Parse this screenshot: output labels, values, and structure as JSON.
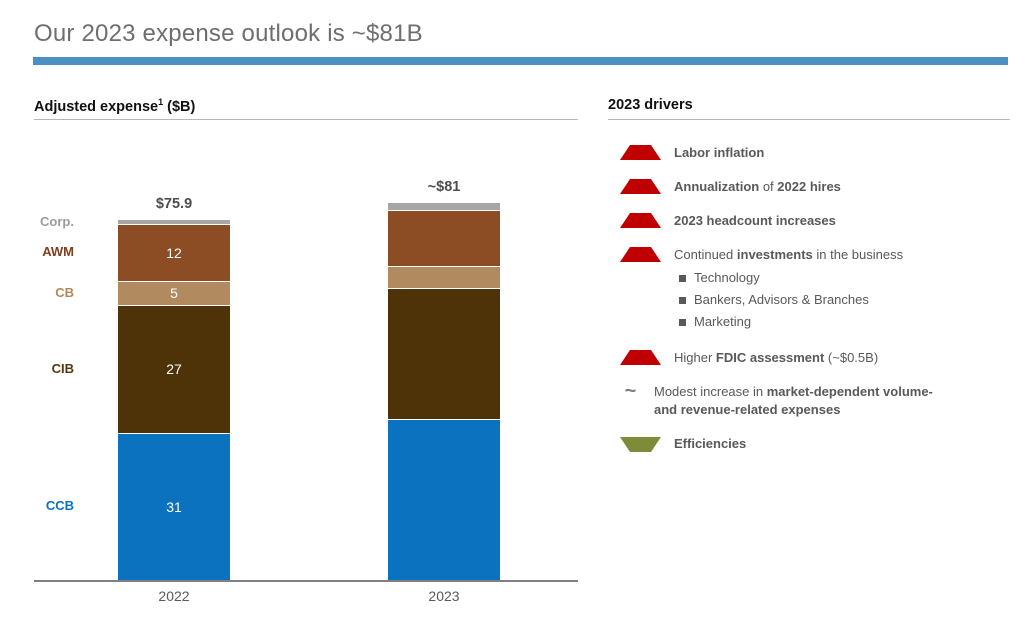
{
  "slide": {
    "title": "Our 2023 expense outlook is ~$81B",
    "accent_color": "#4b8fc3"
  },
  "left_panel": {
    "header": {
      "text": "Adjusted expense",
      "superscript": "1",
      "suffix": " ($B)"
    }
  },
  "right_panel": {
    "header": "2023 drivers",
    "icon_colors": {
      "up": "#c00000",
      "down": "#7e8c3a",
      "tilde": "#7f7f7f"
    },
    "drivers": [
      {
        "icon": "up-triangle",
        "runs": [
          {
            "t": "Labor inflation",
            "b": true
          }
        ]
      },
      {
        "icon": "up-triangle",
        "runs": [
          {
            "t": "Annualization",
            "b": true
          },
          {
            "t": " of ",
            "b": false
          },
          {
            "t": "2022 hires",
            "b": true
          }
        ]
      },
      {
        "icon": "up-triangle",
        "runs": [
          {
            "t": "2023 headcount increases",
            "b": true
          }
        ]
      },
      {
        "icon": "up-triangle",
        "runs": [
          {
            "t": "Continued ",
            "b": false
          },
          {
            "t": "investments",
            "b": true
          },
          {
            "t": " in the business",
            "b": false
          }
        ],
        "sub_items": [
          "Technology",
          "Bankers, Advisors & Branches",
          "Marketing"
        ]
      },
      {
        "icon": "up-triangle",
        "runs": [
          {
            "t": "Higher ",
            "b": false
          },
          {
            "t": "FDIC assessment",
            "b": true
          },
          {
            "t": " (~$0.5B)",
            "b": false
          }
        ]
      },
      {
        "icon": "tilde",
        "runs": [
          {
            "t": "Modest increase in ",
            "b": false
          },
          {
            "t": "market-dependent volume-",
            "b": true,
            "br": true
          },
          {
            "t": "and revenue-related expenses",
            "b": true
          }
        ]
      },
      {
        "icon": "down-triangle",
        "runs": [
          {
            "t": "Efficiencies",
            "b": true
          }
        ]
      }
    ]
  },
  "chart_data": {
    "type": "bar",
    "stacked": true,
    "title": "Adjusted expense1 ($B)",
    "categories": [
      "2022",
      "2023"
    ],
    "totals": [
      75.9,
      81
    ],
    "totals_labels": [
      "$75.9",
      "~$81"
    ],
    "note": "2023 segment values are estimates read from bar heights; only the total ~$81 is labeled",
    "segments_bottom_to_top": [
      {
        "name": "CCB",
        "color": "#0b72c0",
        "label_color": "#0b72c0",
        "values": [
          31,
          34
        ],
        "labels": [
          "31",
          ""
        ]
      },
      {
        "name": "CIB",
        "color": "#4d3307",
        "label_color": "#54380b",
        "values": [
          27,
          27.5
        ],
        "labels": [
          "27",
          ""
        ]
      },
      {
        "name": "CB",
        "color": "#b18b5f",
        "label_color": "#b3885a",
        "values": [
          5,
          4.7
        ],
        "labels": [
          "5",
          ""
        ]
      },
      {
        "name": "AWM",
        "color": "#8c4c24",
        "label_color": "#7f3f1d",
        "values": [
          12,
          11.8
        ],
        "labels": [
          "12",
          ""
        ]
      },
      {
        "name": "Corp.",
        "color": "#a6a6a6",
        "label_color": "#9c9c9c",
        "values": [
          0.9,
          1.5
        ],
        "labels": [
          "",
          ""
        ]
      }
    ],
    "legend_position": "left-of-2022-bar",
    "grid": false,
    "xlabel": "",
    "ylabel": ""
  }
}
